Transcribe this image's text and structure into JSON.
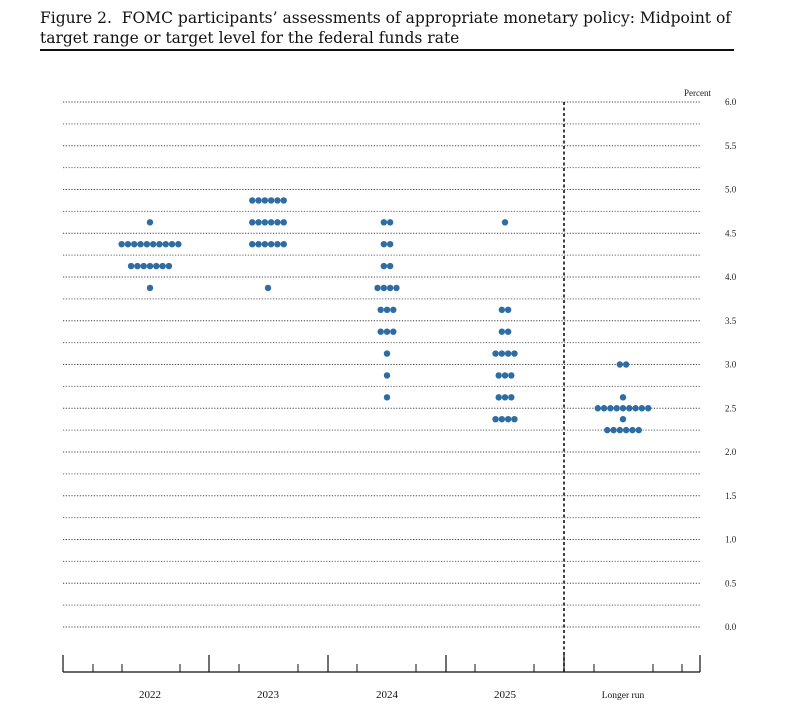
{
  "caption": {
    "figure_label": "Figure 2.",
    "text": "FOMC participants’ assessments of appropriate monetary policy: Midpoint of target range or target level for the federal funds rate"
  },
  "chart_data": {
    "type": "scatter",
    "title": "FOMC participants’ assessments of appropriate monetary policy: Midpoint of target range or target level for the federal funds rate",
    "ylabel": "Percent",
    "ylim": [
      0,
      6
    ],
    "yticks": [
      "0.0",
      "0.5",
      "1.0",
      "1.5",
      "2.0",
      "2.5",
      "3.0",
      "3.5",
      "4.0",
      "4.5",
      "5.0",
      "5.5",
      "6.0"
    ],
    "dot_color": "#2e6da4",
    "categories": [
      "2022",
      "2023",
      "2024",
      "2025",
      "Longer run"
    ],
    "dots": [
      {
        "category": "2022",
        "rates": [
          {
            "y": 4.625,
            "count": 1
          },
          {
            "y": 4.375,
            "count": 10
          },
          {
            "y": 4.125,
            "count": 7
          },
          {
            "y": 3.875,
            "count": 1
          }
        ]
      },
      {
        "category": "2023",
        "rates": [
          {
            "y": 4.875,
            "count": 6
          },
          {
            "y": 4.625,
            "count": 6
          },
          {
            "y": 4.375,
            "count": 6
          },
          {
            "y": 3.875,
            "count": 1
          }
        ]
      },
      {
        "category": "2024",
        "rates": [
          {
            "y": 4.625,
            "count": 2
          },
          {
            "y": 4.375,
            "count": 2
          },
          {
            "y": 4.125,
            "count": 2
          },
          {
            "y": 3.875,
            "count": 4
          },
          {
            "y": 3.625,
            "count": 3
          },
          {
            "y": 3.375,
            "count": 3
          },
          {
            "y": 3.125,
            "count": 1
          },
          {
            "y": 2.875,
            "count": 1
          },
          {
            "y": 2.625,
            "count": 1
          }
        ]
      },
      {
        "category": "2025",
        "rates": [
          {
            "y": 4.625,
            "count": 1
          },
          {
            "y": 3.625,
            "count": 2
          },
          {
            "y": 3.375,
            "count": 2
          },
          {
            "y": 3.125,
            "count": 4
          },
          {
            "y": 2.875,
            "count": 3
          },
          {
            "y": 2.625,
            "count": 3
          },
          {
            "y": 2.375,
            "count": 4
          }
        ]
      },
      {
        "category": "Longer run",
        "rates": [
          {
            "y": 3.0,
            "count": 2
          },
          {
            "y": 2.625,
            "count": 1
          },
          {
            "y": 2.5,
            "count": 9
          },
          {
            "y": 2.375,
            "count": 1
          },
          {
            "y": 2.25,
            "count": 6
          }
        ]
      }
    ],
    "grid": true,
    "separator_before": "Longer run"
  }
}
